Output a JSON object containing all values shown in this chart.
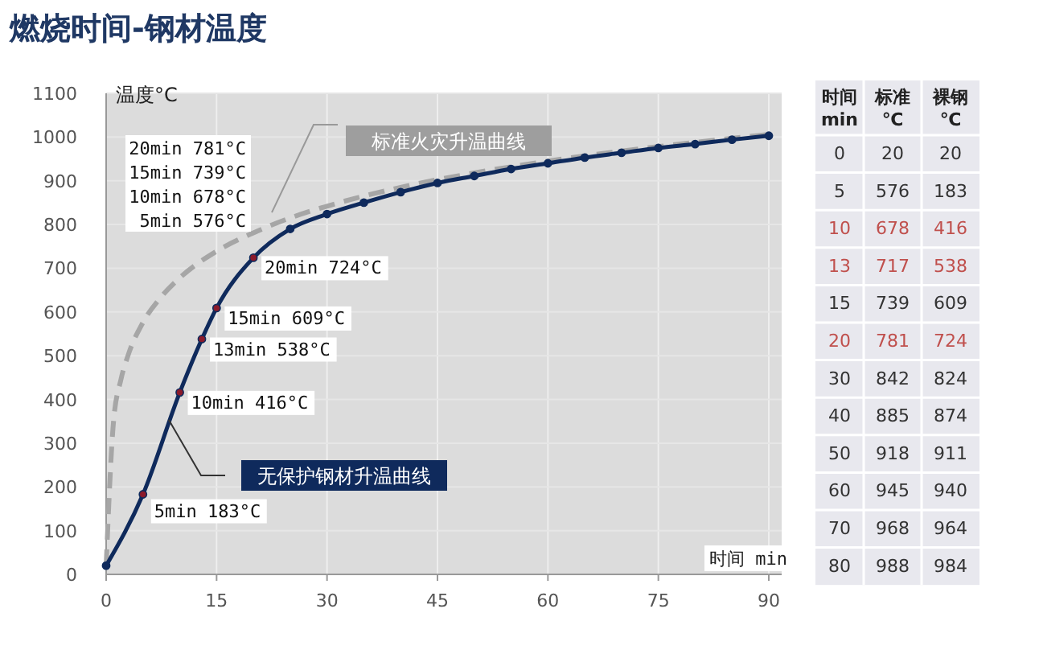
{
  "chart_data": [
    {
      "type": "line",
      "title": "燃烧时间-钢材温度",
      "xlabel": "时间 min",
      "ylabel": "温度°C",
      "xlim": [
        0,
        90
      ],
      "ylim": [
        0,
        1100
      ],
      "xticks": [
        0,
        15,
        30,
        45,
        60,
        75,
        90
      ],
      "yticks": [
        0,
        100,
        200,
        300,
        400,
        500,
        600,
        700,
        800,
        900,
        1000,
        1100
      ],
      "grid": true,
      "legend": false,
      "series": [
        {
          "name": "标准火灾升温曲线",
          "color": "#a6a6a6",
          "line_style": "dashed",
          "marker": "none",
          "x": [
            0,
            1,
            2,
            3,
            5,
            7.5,
            10,
            15,
            20,
            25,
            30,
            40,
            50,
            60,
            70,
            80,
            90
          ],
          "values": [
            20,
            349,
            445,
            502,
            576,
            635,
            678,
            739,
            781,
            815,
            842,
            885,
            918,
            945,
            968,
            988,
            1006
          ]
        },
        {
          "name": "无保护钢材升温曲线",
          "color": "#0f2a5c",
          "line_style": "solid",
          "marker": "circle",
          "x": [
            0,
            5,
            10,
            13,
            15,
            20,
            25,
            30,
            35,
            40,
            45,
            50,
            55,
            60,
            65,
            70,
            75,
            80,
            85,
            90
          ],
          "values": [
            20,
            183,
            416,
            538,
            609,
            724,
            790,
            824,
            850,
            874,
            895,
            911,
            927,
            940,
            953,
            964,
            975,
            984,
            994,
            1003
          ],
          "colors": [
            "#0f2a5c",
            "#8b1a2b",
            "#8b1a2b",
            "#8b1a2b",
            "#8b1a2b",
            "#8b1a2b",
            "#0f2a5c",
            "#0f2a5c",
            "#0f2a5c",
            "#0f2a5c",
            "#0f2a5c",
            "#0f2a5c",
            "#0f2a5c",
            "#0f2a5c",
            "#0f2a5c",
            "#0f2a5c",
            "#0f2a5c",
            "#0f2a5c",
            "#0f2a5c",
            "#0f2a5c"
          ]
        }
      ],
      "annotations": [
        "20min 781°C",
        "15min 739°C",
        "10min 678°C",
        "5min 576°C",
        {
          "text": "20min 724°C",
          "x": 20,
          "y": 724
        },
        {
          "text": "15min 609°C",
          "x": 15,
          "y": 609
        },
        {
          "text": "13min 538°C",
          "x": 13,
          "y": 538
        },
        {
          "text": "10min 416°C",
          "x": 10,
          "y": 416
        },
        {
          "text": "5min 183°C",
          "x": 5,
          "y": 183
        }
      ]
    },
    {
      "type": "heatmap",
      "ylabel": "时间 min",
      "categories": [
        "标准 ℃",
        "裸钢 ℃"
      ],
      "data_labels": true,
      "y_categories": [
        "0",
        "5",
        "10",
        "13",
        "15",
        "20",
        "30",
        "40",
        "50",
        "60",
        "70",
        "80"
      ],
      "cells": [
        [
          20,
          20
        ],
        [
          576,
          183
        ],
        [
          678,
          416
        ],
        [
          717,
          538
        ],
        [
          739,
          609
        ],
        [
          781,
          724
        ],
        [
          842,
          824
        ],
        [
          885,
          874
        ],
        [
          918,
          911
        ],
        [
          945,
          940
        ],
        [
          968,
          964
        ],
        [
          988,
          984
        ]
      ],
      "colors": [
        "#333333",
        "#333333",
        "#c0504d",
        "#c0504d",
        "#333333",
        "#c0504d",
        "#333333",
        "#333333",
        "#333333",
        "#333333",
        "#333333",
        "#333333"
      ]
    }
  ]
}
